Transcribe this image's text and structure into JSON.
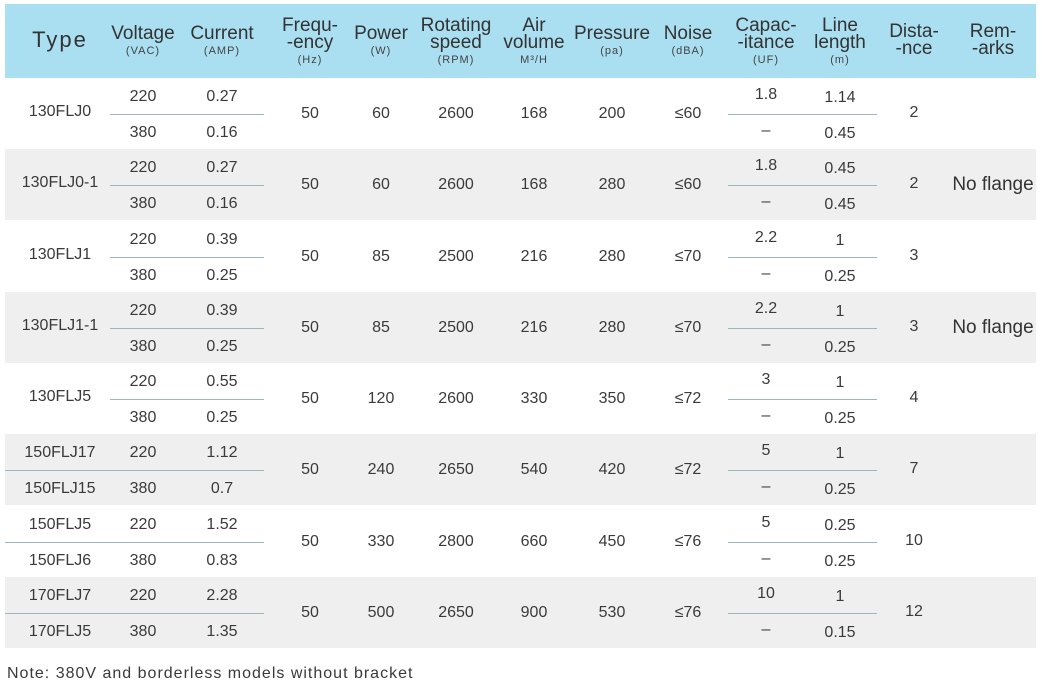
{
  "header": [
    {
      "key": "type",
      "label": "Type",
      "unit": ""
    },
    {
      "key": "voltage",
      "label": "Voltage",
      "unit": "(VAC)"
    },
    {
      "key": "current",
      "label": "Current",
      "unit": "(AMP)"
    },
    {
      "key": "frequency",
      "label": "Frequ-\n-ency",
      "unit": "(Hz)"
    },
    {
      "key": "power",
      "label": "Power",
      "unit": "(W)"
    },
    {
      "key": "speed",
      "label": "Rotating\nspeed",
      "unit": "(RPM)"
    },
    {
      "key": "air",
      "label": "Air\nvolume",
      "unit": "M³/H"
    },
    {
      "key": "pressure",
      "label": "Pressure",
      "unit": "(pa)"
    },
    {
      "key": "noise",
      "label": "Noise",
      "unit": "(dBA)"
    },
    {
      "key": "capacitance",
      "label": "Capac-\n-itance",
      "unit": "(UF)"
    },
    {
      "key": "line",
      "label": "Line\nlength",
      "unit": "(m)"
    },
    {
      "key": "distance",
      "label": "Dista-\n-nce",
      "unit": ""
    },
    {
      "key": "remarks",
      "label": "Rem-\n-arks",
      "unit": ""
    }
  ],
  "rows": [
    {
      "types": [
        "130FLJ0"
      ],
      "voltage": [
        "220",
        "380"
      ],
      "current": [
        "0.27",
        "0.16"
      ],
      "frequency": "50",
      "power": "60",
      "speed": "2600",
      "air": "168",
      "pressure": "200",
      "noise": "≤60",
      "capacitance": [
        "1.8",
        "–"
      ],
      "line": [
        "1.14",
        "0.45"
      ],
      "distance": "2",
      "remarks": ""
    },
    {
      "types": [
        "130FLJ0-1"
      ],
      "voltage": [
        "220",
        "380"
      ],
      "current": [
        "0.27",
        "0.16"
      ],
      "frequency": "50",
      "power": "60",
      "speed": "2600",
      "air": "168",
      "pressure": "280",
      "noise": "≤60",
      "capacitance": [
        "1.8",
        "–"
      ],
      "line": [
        "0.45",
        "0.45"
      ],
      "distance": "2",
      "remarks": "No flange"
    },
    {
      "types": [
        "130FLJ1"
      ],
      "voltage": [
        "220",
        "380"
      ],
      "current": [
        "0.39",
        "0.25"
      ],
      "frequency": "50",
      "power": "85",
      "speed": "2500",
      "air": "216",
      "pressure": "280",
      "noise": "≤70",
      "capacitance": [
        "2.2",
        "–"
      ],
      "line": [
        "1",
        "0.25"
      ],
      "distance": "3",
      "remarks": ""
    },
    {
      "types": [
        "130FLJ1-1"
      ],
      "voltage": [
        "220",
        "380"
      ],
      "current": [
        "0.39",
        "0.25"
      ],
      "frequency": "50",
      "power": "85",
      "speed": "2500",
      "air": "216",
      "pressure": "280",
      "noise": "≤70",
      "capacitance": [
        "2.2",
        "–"
      ],
      "line": [
        "1",
        "0.25"
      ],
      "distance": "3",
      "remarks": "No flange"
    },
    {
      "types": [
        "130FLJ5"
      ],
      "voltage": [
        "220",
        "380"
      ],
      "current": [
        "0.55",
        "0.25"
      ],
      "frequency": "50",
      "power": "120",
      "speed": "2600",
      "air": "330",
      "pressure": "350",
      "noise": "≤72",
      "capacitance": [
        "3",
        "–"
      ],
      "line": [
        "1",
        "0.25"
      ],
      "distance": "4",
      "remarks": ""
    },
    {
      "types": [
        "150FLJ17",
        "150FLJ15"
      ],
      "voltage": [
        "220",
        "380"
      ],
      "current": [
        "1.12",
        "0.7"
      ],
      "frequency": "50",
      "power": "240",
      "speed": "2650",
      "air": "540",
      "pressure": "420",
      "noise": "≤72",
      "capacitance": [
        "5",
        "–"
      ],
      "line": [
        "1",
        "0.25"
      ],
      "distance": "7",
      "remarks": ""
    },
    {
      "types": [
        "150FLJ5",
        "150FLJ6"
      ],
      "voltage": [
        "220",
        "380"
      ],
      "current": [
        "1.52",
        "0.83"
      ],
      "frequency": "50",
      "power": "330",
      "speed": "2800",
      "air": "660",
      "pressure": "450",
      "noise": "≤76",
      "capacitance": [
        "5",
        "–"
      ],
      "line": [
        "0.25",
        "0.25"
      ],
      "distance": "10",
      "remarks": ""
    },
    {
      "types": [
        "170FLJ7",
        "170FLJ5"
      ],
      "voltage": [
        "220",
        "380"
      ],
      "current": [
        "2.28",
        "1.35"
      ],
      "frequency": "50",
      "power": "500",
      "speed": "2650",
      "air": "900",
      "pressure": "530",
      "noise": "≤76",
      "capacitance": [
        "10",
        "–"
      ],
      "line": [
        "1",
        "0.15"
      ],
      "distance": "12",
      "remarks": ""
    }
  ],
  "note": "Note: 380V and borderless models without bracket"
}
